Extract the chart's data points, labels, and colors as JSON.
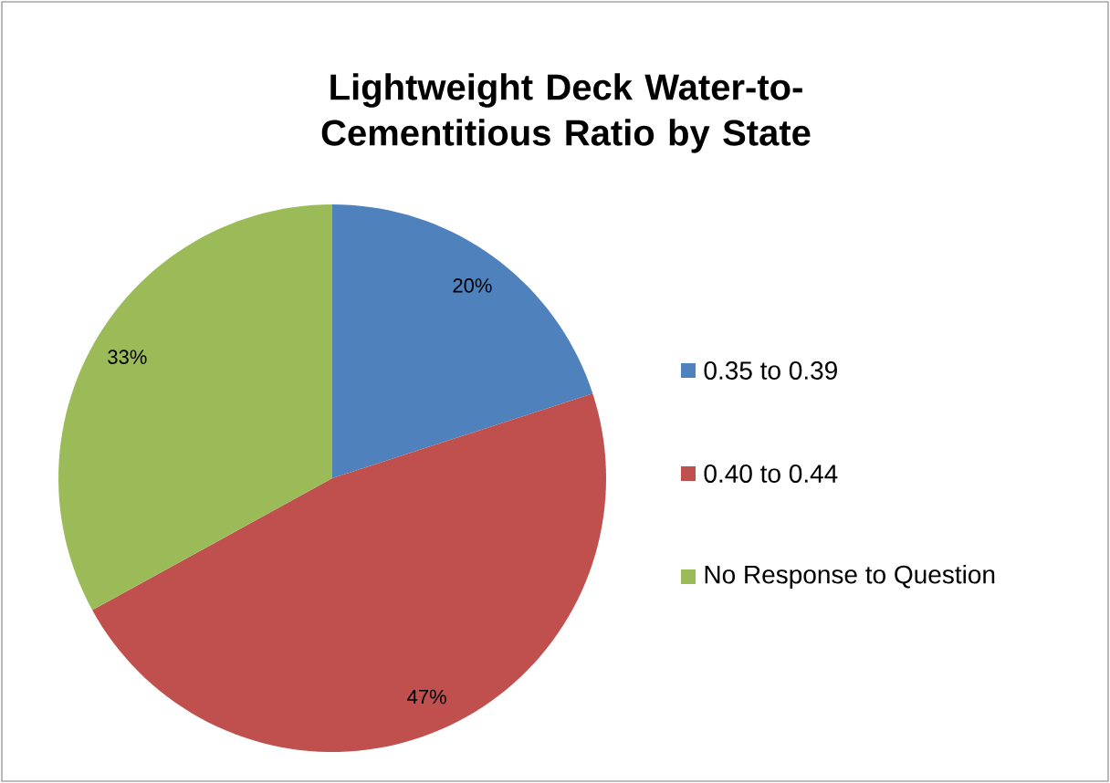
{
  "chart_data": {
    "type": "pie",
    "title": "Lightweight Deck Water-to-Cementitious Ratio by State",
    "categories": [
      "0.35 to 0.39",
      "0.40 to 0.44",
      "No Response to Question"
    ],
    "values": [
      20,
      47,
      33
    ],
    "value_labels": [
      "20%",
      "47%",
      "33%"
    ],
    "colors": [
      "#4f81bd",
      "#c0504d",
      "#9bbb59"
    ],
    "legend": "right"
  }
}
